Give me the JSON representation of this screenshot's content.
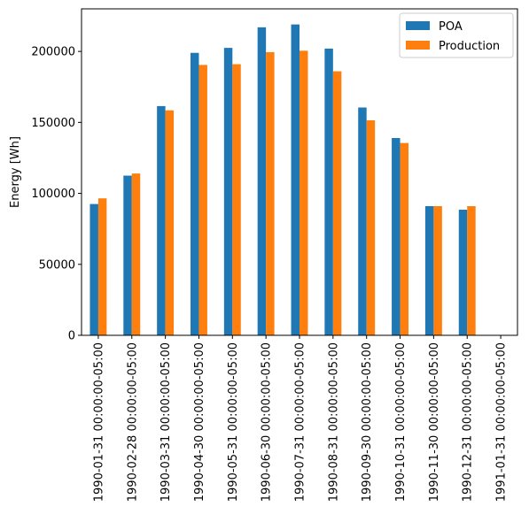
{
  "chart_data": {
    "type": "bar",
    "categories": [
      "1990-01-31 00:00:00-05:00",
      "1990-02-28 00:00:00-05:00",
      "1990-03-31 00:00:00-05:00",
      "1990-04-30 00:00:00-05:00",
      "1990-05-31 00:00:00-05:00",
      "1990-06-30 00:00:00-05:00",
      "1990-07-31 00:00:00-05:00",
      "1990-08-31 00:00:00-05:00",
      "1990-09-30 00:00:00-05:00",
      "1990-10-31 00:00:00-05:00",
      "1990-11-30 00:00:00-05:00",
      "1990-12-31 00:00:00-05:00",
      "1991-01-31 00:00:00-05:00"
    ],
    "series": [
      {
        "name": "POA",
        "color": "#1f77b4",
        "values": [
          92500,
          112500,
          161500,
          199000,
          202500,
          217000,
          219000,
          202000,
          160500,
          139000,
          91000,
          88500,
          0
        ]
      },
      {
        "name": "Production",
        "color": "#ff7f0e",
        "values": [
          96500,
          114000,
          158500,
          190500,
          191000,
          199500,
          200500,
          186000,
          151500,
          135500,
          91000,
          91000,
          0
        ]
      }
    ],
    "title": "",
    "xlabel": "",
    "ylabel": "Energy [Wh]",
    "ylim": [
      0,
      230000
    ],
    "yticks": [
      0,
      50000,
      100000,
      150000,
      200000
    ],
    "ytick_labels": [
      "0",
      "50000",
      "100000",
      "150000",
      "200000"
    ],
    "grid": false,
    "legend_position": "upper right"
  }
}
